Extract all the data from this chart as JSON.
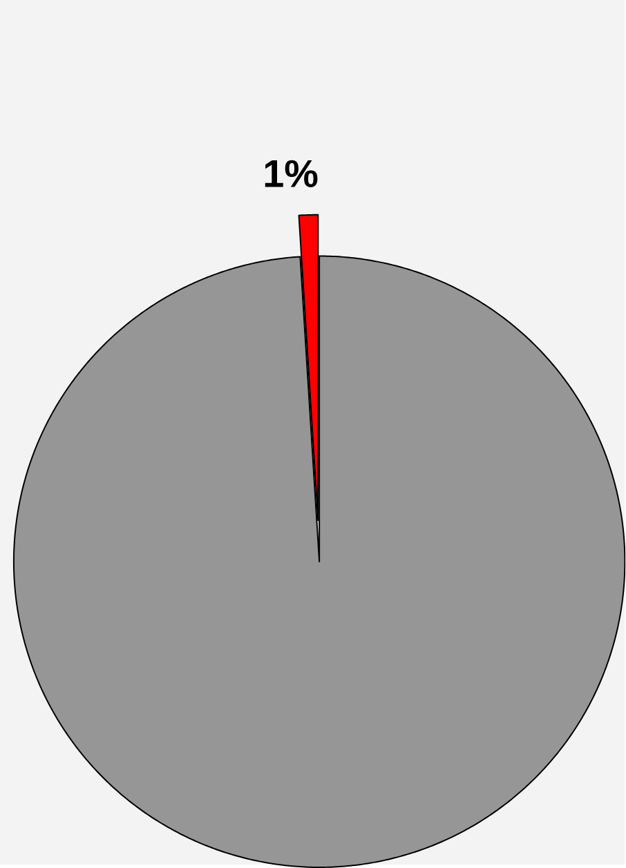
{
  "chart_data": {
    "type": "pie",
    "categories": [
      null,
      null
    ],
    "values": [
      1,
      99
    ],
    "colors": [
      "#ff0000",
      "#969696"
    ],
    "value_labels": [
      "1%",
      null
    ]
  }
}
